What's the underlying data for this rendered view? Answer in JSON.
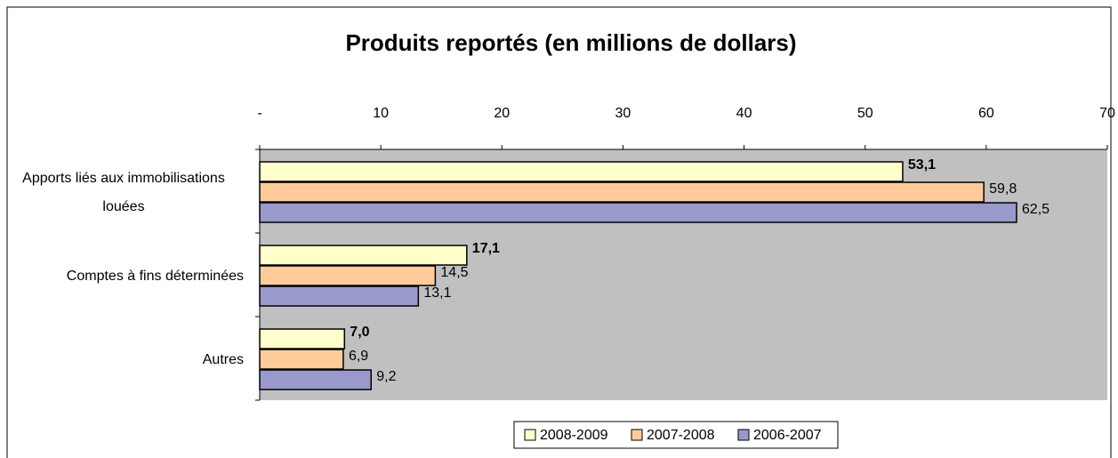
{
  "chart_data": {
    "type": "bar",
    "orientation": "horizontal",
    "title": "Produits reportés (en millions de dollars)",
    "categories": [
      "Apports liés aux immobilisations louées",
      "Comptes à fins déterminées",
      "Autres"
    ],
    "series": [
      {
        "name": "2008-2009",
        "color": "#ffffcc",
        "values": [
          53.1,
          17.1,
          7.0
        ],
        "value_labels": [
          "53,1",
          "17,1",
          "7,0"
        ]
      },
      {
        "name": "2007-2008",
        "color": "#ffcc99",
        "values": [
          59.8,
          14.5,
          6.9
        ],
        "value_labels": [
          "59,8",
          "14,5",
          "6,9"
        ]
      },
      {
        "name": "2006-2007",
        "color": "#9999cc",
        "values": [
          62.5,
          13.1,
          9.2
        ],
        "value_labels": [
          "62,5",
          "13,1",
          "9,2"
        ]
      }
    ],
    "xlim": [
      0,
      70
    ],
    "xticks": [
      {
        "value": 0,
        "label": "-"
      },
      10,
      20,
      30,
      40,
      50,
      60,
      70
    ],
    "plot_background": "#c0c0c0",
    "legend": "bottom"
  }
}
